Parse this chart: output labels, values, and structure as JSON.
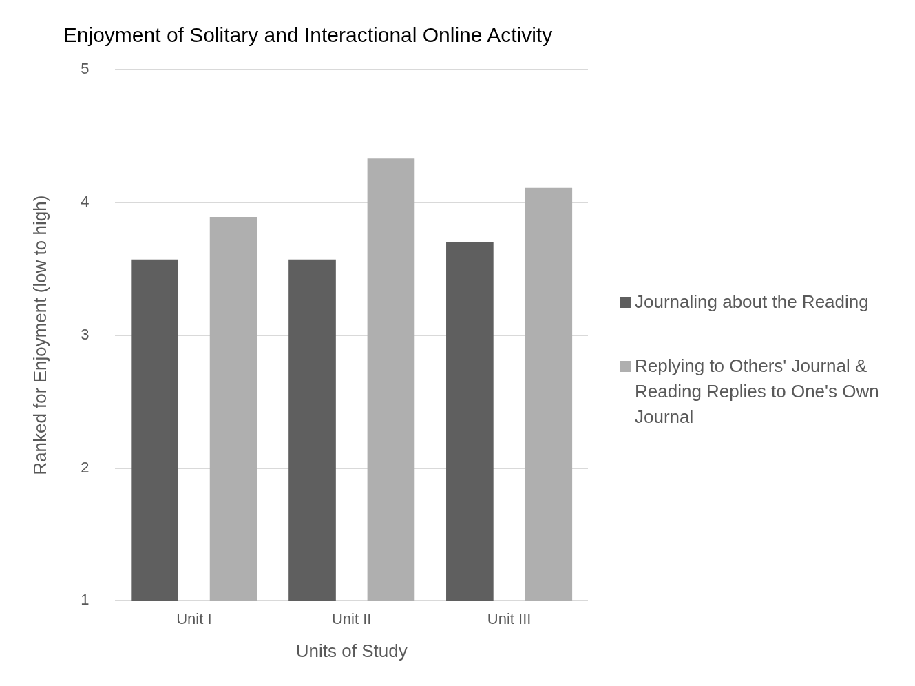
{
  "chart_data": {
    "type": "bar",
    "title": "Enjoyment of Solitary and Interactional Online Activity",
    "xlabel": "Units of Study",
    "ylabel": "Ranked for Enjoyment (low to high)",
    "categories": [
      "Unit I",
      "Unit II",
      "Unit III"
    ],
    "series": [
      {
        "name": "Journaling about the Reading",
        "color": "#5f5f5f",
        "values": [
          3.57,
          3.57,
          3.7
        ]
      },
      {
        "name": "Replying to Others' Journal & Reading Replies to One's Own Journal",
        "color": "#afafaf",
        "values": [
          3.89,
          4.33,
          4.11
        ]
      }
    ],
    "ylim": [
      1,
      5
    ],
    "yticks": [
      1,
      2,
      3,
      4,
      5
    ],
    "grid": "y",
    "legend": "right"
  }
}
